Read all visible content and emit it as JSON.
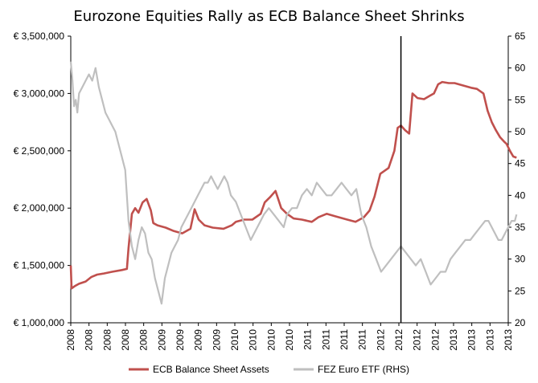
{
  "chart_data": {
    "type": "line",
    "title": "Eurozone Equities Rally as ECB Balance Sheet Shrinks",
    "xlabel": "",
    "ylabel_left": "",
    "ylabel_right": "",
    "x_ticks": [
      "2008",
      "2008",
      "2008",
      "2008",
      "2008",
      "2009",
      "2009",
      "2009",
      "2009",
      "2010",
      "2010",
      "2010",
      "2010",
      "2011",
      "2011",
      "2011",
      "2011",
      "2012",
      "2012",
      "2012",
      "2012",
      "2013",
      "2013",
      "2013",
      "2013"
    ],
    "x_range": [
      2008.0,
      2013.3
    ],
    "y_left": {
      "min": 1000000,
      "max": 3500000,
      "step": 500000,
      "ticks": [
        "€ 1,000,000",
        "€ 1,500,000",
        "€ 2,000,000",
        "€ 2,500,000",
        "€ 3,000,000",
        "€ 3,500,000"
      ]
    },
    "y_right": {
      "min": 20,
      "max": 65,
      "step": 5,
      "ticks": [
        "20",
        "25",
        "30",
        "35",
        "40",
        "45",
        "50",
        "55",
        "60",
        "65"
      ]
    },
    "vertical_marker_x": 2012.0,
    "series": [
      {
        "name": "ECB Balance Sheet Assets",
        "axis": "left",
        "color": "#c0504d",
        "points": [
          [
            2008.0,
            1500000
          ],
          [
            2008.01,
            1300000
          ],
          [
            2008.05,
            1320000
          ],
          [
            2008.1,
            1340000
          ],
          [
            2008.18,
            1360000
          ],
          [
            2008.25,
            1400000
          ],
          [
            2008.32,
            1420000
          ],
          [
            2008.4,
            1430000
          ],
          [
            2008.5,
            1445000
          ],
          [
            2008.62,
            1460000
          ],
          [
            2008.68,
            1470000
          ],
          [
            2008.7,
            1650000
          ],
          [
            2008.74,
            1950000
          ],
          [
            2008.78,
            2000000
          ],
          [
            2008.82,
            1960000
          ],
          [
            2008.87,
            2050000
          ],
          [
            2008.92,
            2080000
          ],
          [
            2008.97,
            1980000
          ],
          [
            2009.0,
            1870000
          ],
          [
            2009.05,
            1850000
          ],
          [
            2009.15,
            1830000
          ],
          [
            2009.25,
            1800000
          ],
          [
            2009.35,
            1780000
          ],
          [
            2009.45,
            1820000
          ],
          [
            2009.5,
            1990000
          ],
          [
            2009.55,
            1900000
          ],
          [
            2009.62,
            1850000
          ],
          [
            2009.72,
            1830000
          ],
          [
            2009.85,
            1820000
          ],
          [
            2009.95,
            1850000
          ],
          [
            2010.0,
            1880000
          ],
          [
            2010.1,
            1900000
          ],
          [
            2010.2,
            1900000
          ],
          [
            2010.3,
            1950000
          ],
          [
            2010.35,
            2050000
          ],
          [
            2010.42,
            2100000
          ],
          [
            2010.48,
            2150000
          ],
          [
            2010.55,
            2000000
          ],
          [
            2010.62,
            1950000
          ],
          [
            2010.7,
            1910000
          ],
          [
            2010.8,
            1900000
          ],
          [
            2010.92,
            1880000
          ],
          [
            2011.0,
            1920000
          ],
          [
            2011.1,
            1950000
          ],
          [
            2011.2,
            1930000
          ],
          [
            2011.35,
            1900000
          ],
          [
            2011.45,
            1880000
          ],
          [
            2011.55,
            1920000
          ],
          [
            2011.62,
            1980000
          ],
          [
            2011.68,
            2100000
          ],
          [
            2011.75,
            2300000
          ],
          [
            2011.85,
            2350000
          ],
          [
            2011.92,
            2500000
          ],
          [
            2011.96,
            2700000
          ],
          [
            2012.0,
            2720000
          ],
          [
            2012.05,
            2680000
          ],
          [
            2012.1,
            2650000
          ],
          [
            2012.14,
            3000000
          ],
          [
            2012.2,
            2960000
          ],
          [
            2012.28,
            2950000
          ],
          [
            2012.35,
            2980000
          ],
          [
            2012.4,
            3000000
          ],
          [
            2012.45,
            3080000
          ],
          [
            2012.5,
            3100000
          ],
          [
            2012.58,
            3090000
          ],
          [
            2012.65,
            3090000
          ],
          [
            2012.75,
            3070000
          ],
          [
            2012.85,
            3050000
          ],
          [
            2012.92,
            3040000
          ],
          [
            2013.0,
            3000000
          ],
          [
            2013.05,
            2850000
          ],
          [
            2013.1,
            2750000
          ],
          [
            2013.15,
            2680000
          ],
          [
            2013.2,
            2620000
          ],
          [
            2013.25,
            2580000
          ],
          [
            2013.28,
            2560000
          ],
          [
            2013.32,
            2500000
          ],
          [
            2013.36,
            2450000
          ],
          [
            2013.4,
            2440000
          ]
        ]
      },
      {
        "name": "FEZ Euro ETF (RHS)",
        "axis": "right",
        "color": "#bfbfbf",
        "points": [
          [
            2008.0,
            61
          ],
          [
            2008.02,
            58
          ],
          [
            2008.04,
            54
          ],
          [
            2008.06,
            55
          ],
          [
            2008.08,
            53
          ],
          [
            2008.1,
            56
          ],
          [
            2008.14,
            57
          ],
          [
            2008.18,
            58
          ],
          [
            2008.22,
            59
          ],
          [
            2008.26,
            58
          ],
          [
            2008.3,
            60
          ],
          [
            2008.34,
            57
          ],
          [
            2008.38,
            55
          ],
          [
            2008.42,
            53
          ],
          [
            2008.46,
            52
          ],
          [
            2008.5,
            51
          ],
          [
            2008.54,
            50
          ],
          [
            2008.58,
            48
          ],
          [
            2008.62,
            46
          ],
          [
            2008.66,
            44
          ],
          [
            2008.7,
            36
          ],
          [
            2008.74,
            32
          ],
          [
            2008.78,
            30
          ],
          [
            2008.82,
            33
          ],
          [
            2008.86,
            35
          ],
          [
            2008.9,
            34
          ],
          [
            2008.94,
            31
          ],
          [
            2008.98,
            30
          ],
          [
            2009.02,
            27
          ],
          [
            2009.06,
            25
          ],
          [
            2009.1,
            23
          ],
          [
            2009.14,
            27
          ],
          [
            2009.18,
            29
          ],
          [
            2009.22,
            31
          ],
          [
            2009.26,
            32
          ],
          [
            2009.3,
            33
          ],
          [
            2009.34,
            35
          ],
          [
            2009.38,
            36
          ],
          [
            2009.42,
            37
          ],
          [
            2009.46,
            38
          ],
          [
            2009.5,
            39
          ],
          [
            2009.54,
            40
          ],
          [
            2009.58,
            41
          ],
          [
            2009.62,
            42
          ],
          [
            2009.66,
            42
          ],
          [
            2009.7,
            43
          ],
          [
            2009.74,
            42
          ],
          [
            2009.78,
            41
          ],
          [
            2009.82,
            42
          ],
          [
            2009.86,
            43
          ],
          [
            2009.9,
            42
          ],
          [
            2009.94,
            40
          ],
          [
            2010.0,
            39
          ],
          [
            2010.06,
            37
          ],
          [
            2010.12,
            35
          ],
          [
            2010.18,
            33
          ],
          [
            2010.22,
            34
          ],
          [
            2010.26,
            35
          ],
          [
            2010.3,
            36
          ],
          [
            2010.34,
            37
          ],
          [
            2010.4,
            38
          ],
          [
            2010.46,
            37
          ],
          [
            2010.52,
            36
          ],
          [
            2010.58,
            35
          ],
          [
            2010.62,
            37
          ],
          [
            2010.68,
            38
          ],
          [
            2010.74,
            38
          ],
          [
            2010.8,
            40
          ],
          [
            2010.86,
            41
          ],
          [
            2010.92,
            40
          ],
          [
            2010.98,
            42
          ],
          [
            2011.04,
            41
          ],
          [
            2011.1,
            40
          ],
          [
            2011.16,
            40
          ],
          [
            2011.22,
            41
          ],
          [
            2011.28,
            42
          ],
          [
            2011.34,
            41
          ],
          [
            2011.4,
            40
          ],
          [
            2011.46,
            41
          ],
          [
            2011.52,
            37
          ],
          [
            2011.58,
            35
          ],
          [
            2011.64,
            32
          ],
          [
            2011.7,
            30
          ],
          [
            2011.76,
            28
          ],
          [
            2011.82,
            29
          ],
          [
            2011.88,
            30
          ],
          [
            2011.94,
            31
          ],
          [
            2012.0,
            32
          ],
          [
            2012.06,
            31
          ],
          [
            2012.12,
            30
          ],
          [
            2012.18,
            29
          ],
          [
            2012.24,
            30
          ],
          [
            2012.3,
            28
          ],
          [
            2012.36,
            26
          ],
          [
            2012.42,
            27
          ],
          [
            2012.48,
            28
          ],
          [
            2012.54,
            28
          ],
          [
            2012.6,
            30
          ],
          [
            2012.66,
            31
          ],
          [
            2012.72,
            32
          ],
          [
            2012.78,
            33
          ],
          [
            2012.84,
            33
          ],
          [
            2012.9,
            34
          ],
          [
            2012.96,
            35
          ],
          [
            2013.02,
            36
          ],
          [
            2013.06,
            36
          ],
          [
            2013.1,
            35
          ],
          [
            2013.14,
            34
          ],
          [
            2013.18,
            33
          ],
          [
            2013.22,
            33
          ],
          [
            2013.26,
            34
          ],
          [
            2013.3,
            35
          ],
          [
            2013.34,
            36
          ],
          [
            2013.38,
            36
          ],
          [
            2013.4,
            37
          ]
        ]
      }
    ],
    "legend": [
      "ECB Balance Sheet Assets",
      "FEZ Euro ETF (RHS)"
    ],
    "legend_position": "bottom",
    "grid": false
  }
}
